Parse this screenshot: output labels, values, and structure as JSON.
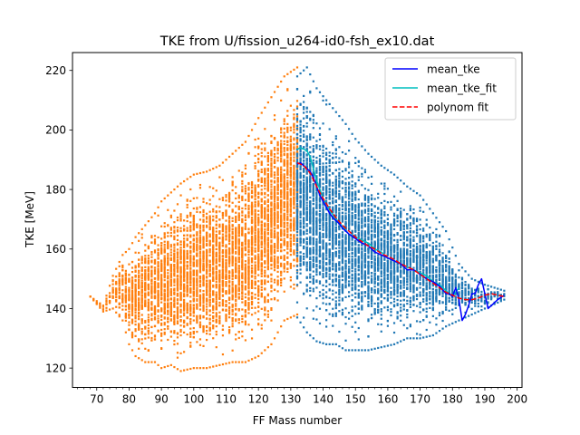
{
  "chart_data": {
    "type": "scatter",
    "title": "TKE from  U/fission_u264-id0-fsh_ex10.dat",
    "xlabel": "FF Mass number",
    "ylabel": "TKE [MeV]",
    "xlim": [
      62.5,
      201.5
    ],
    "ylim": [
      113.5,
      226
    ],
    "xticks": [
      70,
      80,
      90,
      100,
      110,
      120,
      130,
      140,
      150,
      160,
      170,
      180,
      190,
      200
    ],
    "xtick_labels": [
      "70",
      "80",
      "90",
      "100",
      "110",
      "120",
      "130",
      "140",
      "150",
      "160",
      "170",
      "180",
      "190",
      "200"
    ],
    "x_minor_step": 2,
    "yticks": [
      120,
      140,
      160,
      180,
      200,
      220
    ],
    "ytick_labels": [
      "120",
      "140",
      "160",
      "180",
      "200",
      "220"
    ],
    "grid": false,
    "legend_position": "top-right",
    "scatter_series": [
      {
        "color": "#ff7f0e",
        "mass_range": [
          68,
          132
        ],
        "envelope": [
          [
            68,
            144,
            144
          ],
          [
            72,
            139,
            141
          ],
          [
            75,
            140,
            151
          ],
          [
            78,
            136,
            158
          ],
          [
            80,
            128,
            160
          ],
          [
            82,
            124,
            164
          ],
          [
            85,
            122,
            168
          ],
          [
            88,
            122,
            172
          ],
          [
            90,
            120,
            176
          ],
          [
            93,
            121,
            179
          ],
          [
            96,
            119,
            182
          ],
          [
            100,
            120,
            185
          ],
          [
            104,
            120,
            186
          ],
          [
            108,
            121,
            188
          ],
          [
            112,
            122,
            192
          ],
          [
            116,
            122,
            196
          ],
          [
            120,
            124,
            204
          ],
          [
            124,
            128,
            211
          ],
          [
            128,
            136,
            218
          ],
          [
            132,
            138,
            221
          ]
        ]
      },
      {
        "color": "#1f77b4",
        "mass_range": [
          132,
          196
        ],
        "envelope": [
          [
            132,
            137,
            218
          ],
          [
            135,
            132,
            221
          ],
          [
            138,
            129,
            214
          ],
          [
            141,
            128,
            210
          ],
          [
            144,
            128,
            206
          ],
          [
            147,
            126,
            202
          ],
          [
            150,
            126,
            197
          ],
          [
            154,
            126,
            192
          ],
          [
            158,
            127,
            188
          ],
          [
            162,
            128,
            185
          ],
          [
            166,
            130,
            181
          ],
          [
            170,
            130,
            178
          ],
          [
            174,
            131,
            172
          ],
          [
            178,
            134,
            166
          ],
          [
            182,
            136,
            155
          ],
          [
            186,
            138,
            150
          ],
          [
            190,
            140,
            148
          ],
          [
            196,
            143,
            146
          ]
        ]
      }
    ],
    "series": [
      {
        "name": "mean_tke",
        "color": "#0000ff",
        "style": "solid",
        "x": [
          132,
          133,
          134,
          135,
          136,
          137,
          138,
          139,
          140,
          141,
          142,
          143,
          144,
          145,
          146,
          148,
          150,
          152,
          154,
          156,
          158,
          160,
          162,
          164,
          166,
          168,
          170,
          172,
          174,
          176,
          178,
          179,
          180,
          181,
          182,
          183,
          184,
          185,
          186,
          187,
          188,
          189,
          190,
          191,
          192,
          193,
          194,
          196
        ],
        "y": [
          188.5,
          189,
          188,
          187,
          186,
          184,
          181,
          178,
          176,
          174,
          172,
          170.5,
          169.5,
          168.5,
          167,
          165,
          163.5,
          162,
          161,
          159,
          158,
          157,
          156,
          155,
          153,
          153,
          151.5,
          150,
          149,
          147.5,
          145,
          145,
          144,
          147,
          143,
          136,
          138,
          141,
          145,
          145,
          148,
          150,
          145,
          140,
          141,
          142,
          143,
          144.5
        ]
      },
      {
        "name": "mean_tke_fit",
        "color": "#00bfbf",
        "style": "solid",
        "x": [
          132,
          133,
          134,
          135,
          136,
          137,
          138,
          139,
          140,
          141,
          142,
          143,
          144,
          145,
          146,
          148,
          150,
          152,
          154,
          156,
          158,
          160,
          162,
          164,
          166,
          168,
          170,
          172,
          174,
          176,
          178,
          180,
          182
        ],
        "y": [
          193.5,
          194,
          193.5,
          193,
          191,
          187,
          183,
          180,
          177,
          175,
          173,
          171.5,
          170,
          169,
          167.5,
          165,
          164,
          163,
          162,
          160,
          159,
          157,
          156,
          155,
          154,
          153,
          152,
          151,
          149,
          148,
          146,
          144,
          147
        ]
      },
      {
        "name": "polynom fit",
        "color": "#ff0000",
        "style": "dashed",
        "x": [
          132,
          134,
          136,
          138,
          140,
          142,
          144,
          146,
          148,
          150,
          152,
          154,
          156,
          158,
          160,
          162,
          164,
          166,
          168,
          170,
          172,
          174,
          176,
          178,
          180,
          182,
          184,
          186,
          188,
          190,
          192,
          194,
          196
        ],
        "y": [
          189,
          188,
          185.5,
          181,
          177,
          173.5,
          170.5,
          168,
          166,
          164,
          162.5,
          161,
          160,
          158.5,
          157.5,
          156.5,
          155,
          154,
          153,
          151.5,
          150,
          148.5,
          147,
          145.5,
          144.5,
          143.5,
          143,
          143,
          143.5,
          144.5,
          145,
          144.5,
          144
        ]
      }
    ]
  }
}
